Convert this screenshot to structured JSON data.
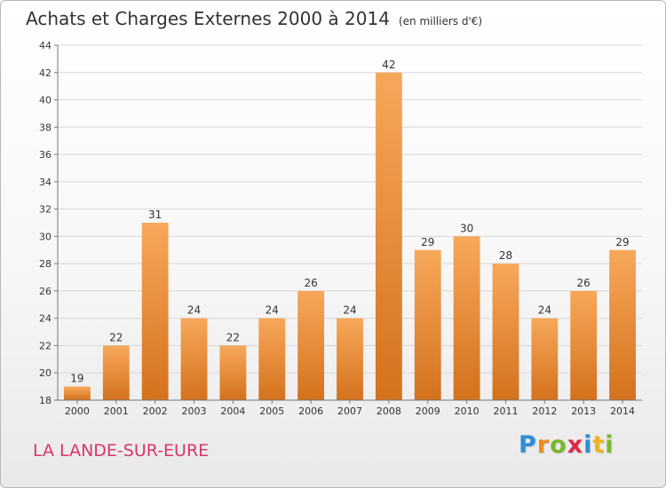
{
  "header": {
    "title": "Achats et Charges Externes 2000 à 2014",
    "unit": "(en milliers d'€)"
  },
  "footer": {
    "commune": "LA LANDE-SUR-EURE",
    "logo_text": "Proxiti",
    "logo_letters": [
      {
        "char": "P",
        "color": "#2e8fd6"
      },
      {
        "char": "r",
        "color": "#f08a1c"
      },
      {
        "char": "o",
        "color": "#7ab929"
      },
      {
        "char": "x",
        "color": "#e0284b"
      },
      {
        "char": "i",
        "color": "#2e8fd6"
      },
      {
        "char": "t",
        "color": "#f0b41c"
      },
      {
        "char": "i",
        "color": "#7ab929"
      }
    ]
  },
  "colors": {
    "bar_light": "#f7a85a",
    "bar_dark": "#d4711c",
    "grid": "#d7d7d7",
    "axis": "#777777",
    "text": "#333333",
    "commune": "#d9356b"
  },
  "chart_data": {
    "type": "bar",
    "title": "Achats et Charges Externes 2000 à 2014",
    "subtitle": "(en milliers d'€)",
    "xlabel": "",
    "ylabel": "",
    "categories": [
      "2000",
      "2001",
      "2002",
      "2003",
      "2004",
      "2005",
      "2006",
      "2007",
      "2008",
      "2009",
      "2010",
      "2011",
      "2012",
      "2013",
      "2014"
    ],
    "values": [
      19,
      22,
      31,
      24,
      22,
      24,
      26,
      24,
      42,
      29,
      30,
      28,
      24,
      26,
      29
    ],
    "ylim": [
      18,
      44
    ],
    "yticks": [
      18,
      20,
      22,
      24,
      26,
      28,
      30,
      32,
      34,
      36,
      38,
      40,
      42,
      44
    ],
    "grid": true,
    "legend": "none"
  }
}
